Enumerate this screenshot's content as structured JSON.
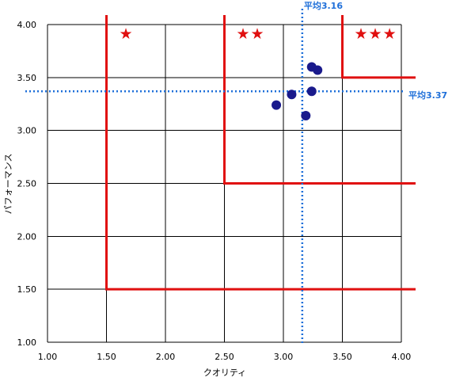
{
  "chart_data": {
    "type": "scatter",
    "xlabel": "クオリティ",
    "ylabel": "パフォーマンス",
    "xlim": [
      1.0,
      4.0
    ],
    "ylim": [
      1.0,
      4.0
    ],
    "xticks": [
      "1.00",
      "1.50",
      "2.00",
      "2.50",
      "3.00",
      "3.50",
      "4.00"
    ],
    "yticks": [
      "1.00",
      "1.50",
      "2.00",
      "2.50",
      "3.00",
      "3.50",
      "4.00"
    ],
    "grid": true,
    "points": [
      {
        "x": 3.24,
        "y": 3.6
      },
      {
        "x": 3.29,
        "y": 3.57
      },
      {
        "x": 3.24,
        "y": 3.37
      },
      {
        "x": 3.07,
        "y": 3.34
      },
      {
        "x": 2.94,
        "y": 3.24
      },
      {
        "x": 3.19,
        "y": 3.14
      }
    ],
    "point_color": "#1a1a8c",
    "averages": {
      "x": {
        "value": 3.16,
        "label": "平均3.16"
      },
      "y": {
        "value": 3.37,
        "label": "平均3.37"
      }
    },
    "average_color": "#1e6fd9",
    "zones": [
      {
        "x_from": 1.5,
        "y_from": 1.5,
        "rating": "★"
      },
      {
        "x_from": 2.5,
        "y_from": 2.5,
        "rating": "★★"
      },
      {
        "x_from": 3.5,
        "y_from": 3.5,
        "rating": "★★★"
      }
    ],
    "zone_color": "#e01010",
    "star_color": "#e01010"
  }
}
